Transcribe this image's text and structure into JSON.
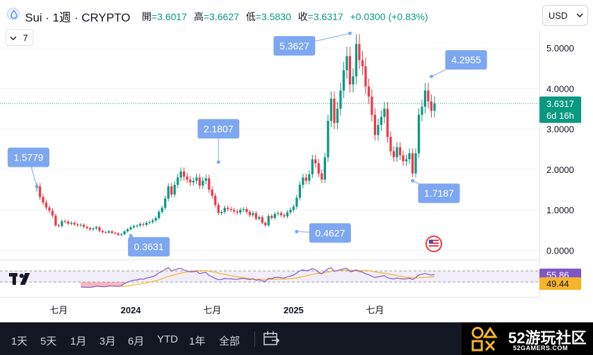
{
  "header": {
    "symbol_title": "Sui · 1週 · CRYPTO",
    "ohlc": [
      {
        "label": "開",
        "value": "=3.6017"
      },
      {
        "label": "高",
        "value": "=3.6627"
      },
      {
        "label": "低",
        "value": "=3.5830"
      },
      {
        "label": "收",
        "value": "=3.6317"
      }
    ],
    "change": "+0.0300 (+0.83%)",
    "currency": "USD",
    "indicator_count": "7"
  },
  "colors": {
    "up": "#089981",
    "down": "#f23645",
    "label_bg": "#7ea7f2",
    "rsi_line": "#7e57c2",
    "rsi_ma": "#f5b52a"
  },
  "chart_data": {
    "type": "candlestick",
    "interval": "1 week",
    "price_axis": {
      "ticks": [
        "5.0000",
        "4.0000",
        "3.0000",
        "2.0000",
        "1.0000",
        "0.0000"
      ],
      "ylim": [
        -0.2,
        5.5
      ]
    },
    "time_axis": {
      "ticks": [
        {
          "label": "七月",
          "bold": false
        },
        {
          "label": "2024",
          "bold": true
        },
        {
          "label": "七月",
          "bold": false
        },
        {
          "label": "2025",
          "bold": true
        },
        {
          "label": "七月",
          "bold": false
        }
      ]
    },
    "last_price": {
      "value": "3.6317",
      "countdown": "6d 16h"
    },
    "closes": [
      1.58,
      1.32,
      1.18,
      1.06,
      0.98,
      0.86,
      0.62,
      0.6,
      0.72,
      0.71,
      0.66,
      0.68,
      0.64,
      0.62,
      0.63,
      0.58,
      0.55,
      0.52,
      0.54,
      0.57,
      0.48,
      0.45,
      0.44,
      0.47,
      0.43,
      0.42,
      0.38,
      0.4,
      0.47,
      0.52,
      0.57,
      0.6,
      0.61,
      0.65,
      0.63,
      0.68,
      0.7,
      0.74,
      0.8,
      0.95,
      1.05,
      1.28,
      1.58,
      1.38,
      1.62,
      1.8,
      1.95,
      1.82,
      1.75,
      1.68,
      1.72,
      1.8,
      1.6,
      1.72,
      1.78,
      1.5,
      1.35,
      1.12,
      0.92,
      0.95,
      1.05,
      1.02,
      1.0,
      0.96,
      0.93,
      1.0,
      1.02,
      0.95,
      0.87,
      0.92,
      0.78,
      0.82,
      0.68,
      0.62,
      0.85,
      0.8,
      0.9,
      0.92,
      0.87,
      0.84,
      0.94,
      1.0,
      1.08,
      1.3,
      1.62,
      1.8,
      1.72,
      1.88,
      2.25,
      2.15,
      1.9,
      1.75,
      2.3,
      3.2,
      3.75,
      3.15,
      3.5,
      3.95,
      4.45,
      4.8,
      4.1,
      4.3,
      5.1,
      4.7,
      4.55,
      4.05,
      3.8,
      3.35,
      2.85,
      3.1,
      3.3,
      3.5,
      2.8,
      2.45,
      2.3,
      2.55,
      2.35,
      2.2,
      2.25,
      2.4,
      1.9,
      2.4,
      3.35,
      3.55,
      3.95,
      3.68,
      3.45,
      3.6317
    ],
    "annotations": [
      {
        "label": "1.5779",
        "kind": "high"
      },
      {
        "label": "0.3631",
        "kind": "low"
      },
      {
        "label": "2.1807",
        "kind": "high"
      },
      {
        "label": "0.4627",
        "kind": "low"
      },
      {
        "label": "5.3627",
        "kind": "high"
      },
      {
        "label": "1.7187",
        "kind": "low"
      },
      {
        "label": "4.2955",
        "kind": "high"
      }
    ],
    "rsi": {
      "rsi_value": "55.86",
      "ma_value": "49.44",
      "ylim": [
        0,
        100
      ],
      "band": [
        30,
        70
      ]
    }
  },
  "bottom_bar": {
    "ranges": [
      "1天",
      "5天",
      "1月",
      "3月",
      "6月",
      "YTD",
      "1年",
      "全部"
    ]
  },
  "watermark": {
    "title": "52游玩社区",
    "site": "52GAMERS.COM"
  }
}
